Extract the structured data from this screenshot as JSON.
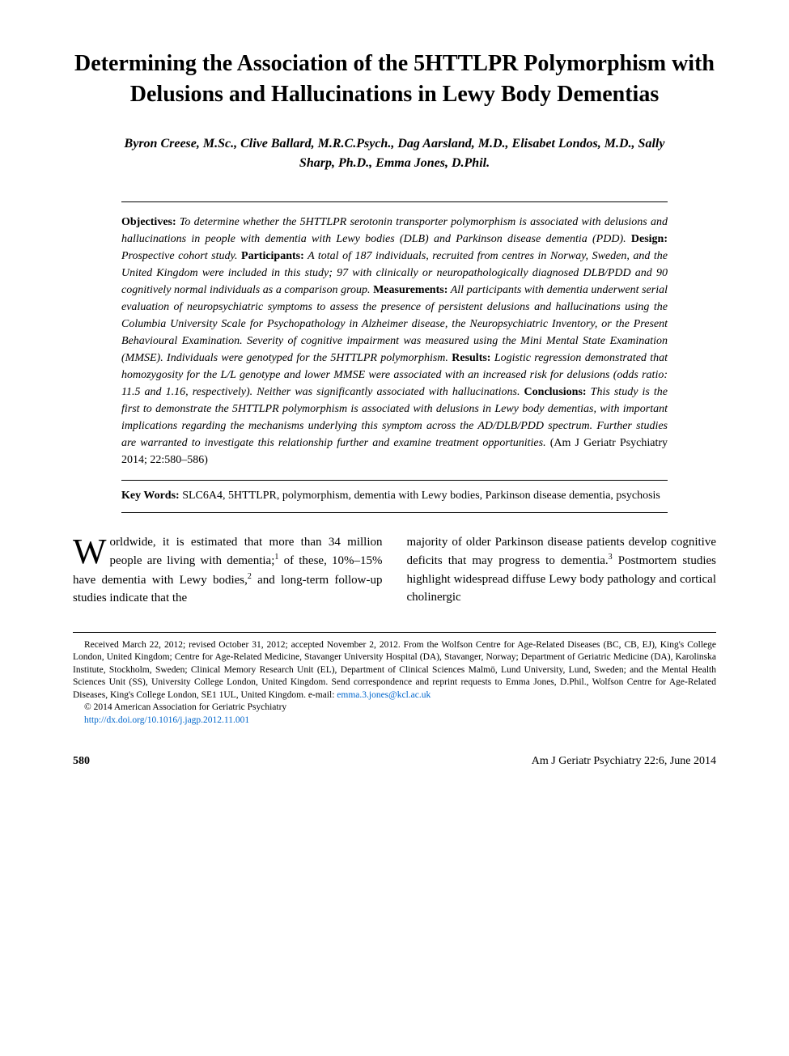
{
  "title": "Determining the Association of the 5HTTLPR Polymorphism with Delusions and Hallucinations in Lewy Body Dementias",
  "authors": "Byron Creese, M.Sc., Clive Ballard, M.R.C.Psych., Dag Aarsland, M.D., Elisabet Londos, M.D., Sally Sharp, Ph.D., Emma Jones, D.Phil.",
  "abstract": {
    "objectives_label": "Objectives:",
    "objectives": "To determine whether the 5HTTLPR serotonin transporter polymorphism is associated with delusions and hallucinations in people with dementia with Lewy bodies (DLB) and Parkinson disease dementia (PDD).",
    "design_label": "Design:",
    "design": "Prospective cohort study.",
    "participants_label": "Participants:",
    "participants": "A total of 187 individuals, recruited from centres in Norway, Sweden, and the United Kingdom were included in this study; 97 with clinically or neuropathologically diagnosed DLB/PDD and 90 cognitively normal individuals as a comparison group.",
    "measurements_label": "Measurements:",
    "measurements": "All participants with dementia underwent serial evaluation of neuropsychiatric symptoms to assess the presence of persistent delusions and hallucinations using the Columbia University Scale for Psychopathology in Alzheimer disease, the Neuropsychiatric Inventory, or the Present Behavioural Examination. Severity of cognitive impairment was measured using the Mini Mental State Examination (MMSE). Individuals were genotyped for the 5HTTLPR polymorphism.",
    "results_label": "Results:",
    "results": "Logistic regression demonstrated that homozygosity for the L/L genotype and lower MMSE were associated with an increased risk for delusions (odds ratio: 11.5 and 1.16, respectively). Neither was significantly associated with hallucinations.",
    "conclusions_label": "Conclusions:",
    "conclusions": "This study is the first to demonstrate the 5HTTLPR polymorphism is associated with delusions in Lewy body dementias, with important implications regarding the mechanisms underlying this symptom across the AD/DLB/PDD spectrum. Further studies are warranted to investigate this relationship further and examine treatment opportunities.",
    "citation": "(Am J Geriatr Psychiatry 2014; 22:580–586)"
  },
  "keywords_label": "Key Words:",
  "keywords": "SLC6A4, 5HTTLPR, polymorphism, dementia with Lewy bodies, Parkinson disease dementia, psychosis",
  "body": {
    "col1_dropcap": "W",
    "col1_first": "orldwide, it is estimated that more than 34 million people are living with dementia;",
    "col1_ref1": "1",
    "col1_mid": " of these, 10%–15% have dementia with Lewy bodies,",
    "col1_ref2": "2",
    "col1_end": " and long-term follow-up studies indicate that the",
    "col2_a": "majority of older Parkinson disease patients develop cognitive deficits that may progress to dementia.",
    "col2_ref3": "3",
    "col2_b": " Postmortem studies highlight widespread diffuse Lewy body pathology and cortical cholinergic"
  },
  "footnotes": {
    "received": "Received March 22, 2012; revised October 31, 2012; accepted November 2, 2012. From the Wolfson Centre for Age-Related Diseases (BC, CB, EJ), King's College London, United Kingdom; Centre for Age-Related Medicine, Stavanger University Hospital (DA), Stavanger, Norway; Department of Geriatric Medicine (DA), Karolinska Institute, Stockholm, Sweden; Clinical Memory Research Unit (EL), Department of Clinical Sciences Malmö, Lund University, Lund, Sweden; and the Mental Health Sciences Unit (SS), University College London, United Kingdom. Send correspondence and reprint requests to Emma Jones, D.Phil., Wolfson Centre for Age-Related Diseases, King's College London, SE1 1UL, United Kingdom. e-mail: ",
    "email": "emma.3.jones@kcl.ac.uk",
    "copyright": "© 2014 American Association for Geriatric Psychiatry",
    "doi": "http://dx.doi.org/10.1016/j.jagp.2012.11.001"
  },
  "footer": {
    "page": "580",
    "journal": "Am J Geriatr Psychiatry 22:6, June 2014"
  }
}
